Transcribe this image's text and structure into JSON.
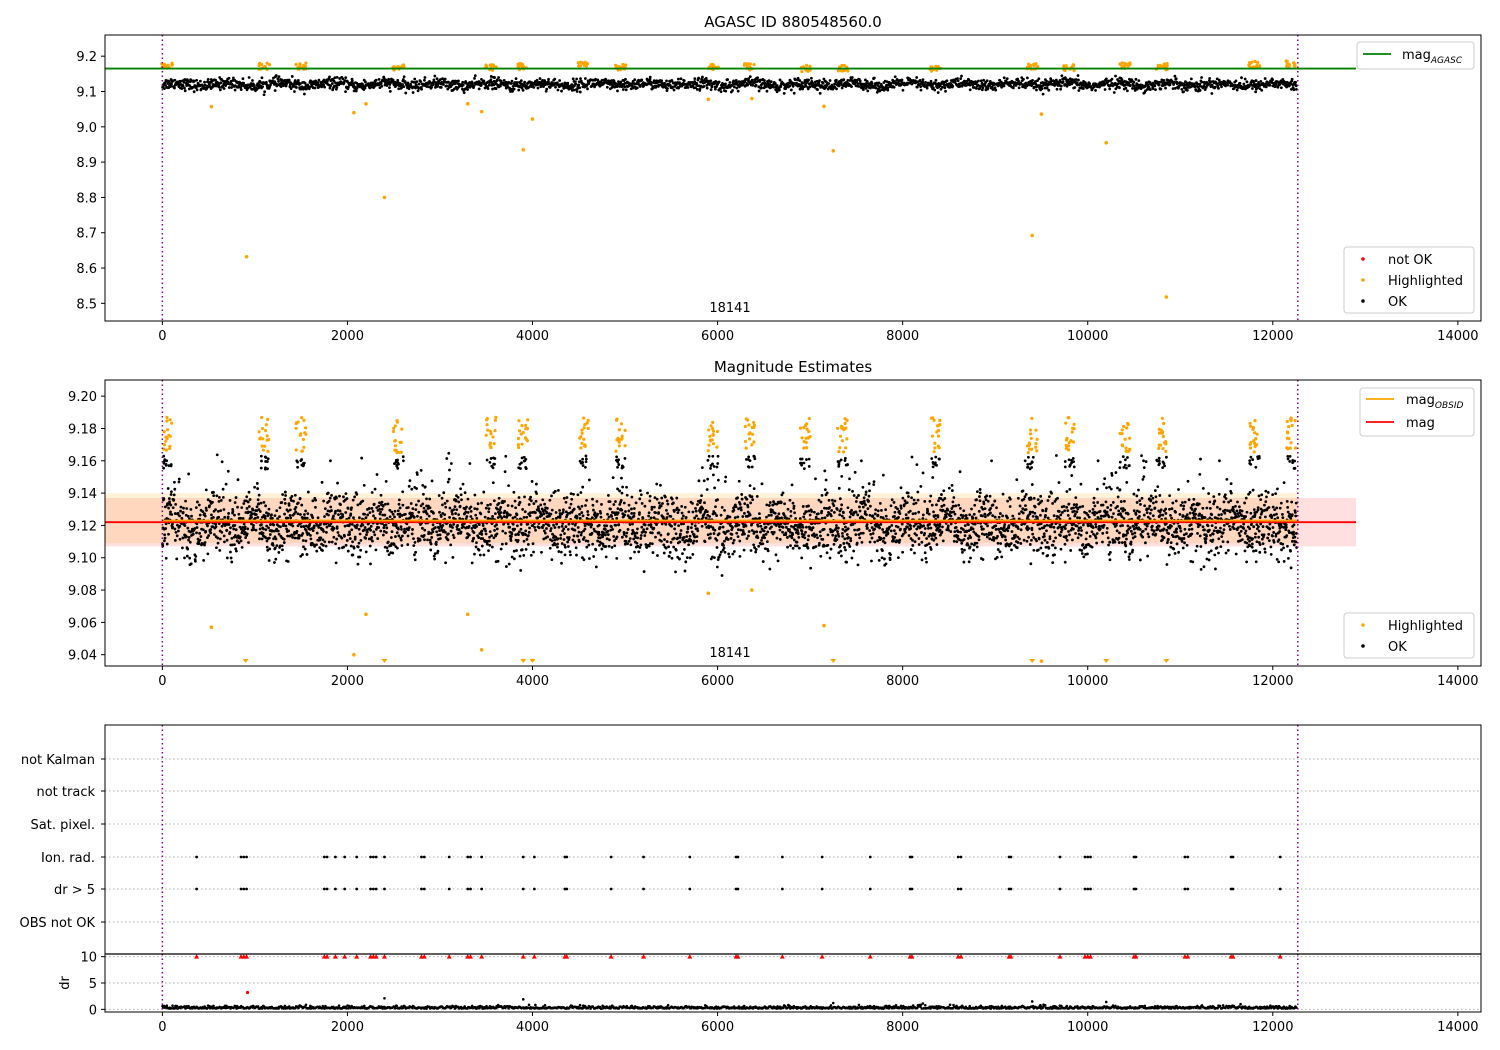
{
  "chart_data": [
    {
      "type": "scatter",
      "title": "AGASC ID 880548560.0",
      "xlim": [
        -620,
        14250
      ],
      "ylim": [
        8.45,
        9.26
      ],
      "xticks": [
        "0",
        "2000",
        "4000",
        "6000",
        "8000",
        "10000",
        "12000",
        "14000"
      ],
      "yticks": [
        "8.5",
        "8.6",
        "8.7",
        "8.8",
        "8.9",
        "9.0",
        "9.1",
        "9.2"
      ],
      "annotation": "18141",
      "vlines_x": [
        0,
        12270
      ],
      "hline": {
        "name": "mag",
        "subscript": "AGASC",
        "value": 9.165,
        "color": "#008000"
      },
      "legend_top": [
        {
          "name": "mag",
          "subscript": "AGASC",
          "color": "#008000",
          "kind": "line"
        }
      ],
      "legend_bottom": [
        {
          "name": "not OK",
          "color": "#ff0000",
          "kind": "dot"
        },
        {
          "name": "Highlighted",
          "color": "#ffa500",
          "kind": "dot"
        },
        {
          "name": "OK",
          "color": "#000000",
          "kind": "dot"
        }
      ],
      "ok_band": {
        "center": 9.12,
        "halfwidth": 0.02
      },
      "highlight_clusters": [
        {
          "x": 50,
          "y": 9.175
        },
        {
          "x": 1100,
          "y": 9.172
        },
        {
          "x": 1500,
          "y": 9.172
        },
        {
          "x": 2550,
          "y": 9.168
        },
        {
          "x": 3550,
          "y": 9.168
        },
        {
          "x": 3900,
          "y": 9.17
        },
        {
          "x": 4550,
          "y": 9.175
        },
        {
          "x": 4950,
          "y": 9.168
        },
        {
          "x": 5950,
          "y": 9.168
        },
        {
          "x": 6350,
          "y": 9.17
        },
        {
          "x": 6950,
          "y": 9.165
        },
        {
          "x": 7350,
          "y": 9.165
        },
        {
          "x": 8350,
          "y": 9.165
        },
        {
          "x": 9400,
          "y": 9.17
        },
        {
          "x": 9800,
          "y": 9.168
        },
        {
          "x": 10400,
          "y": 9.172
        },
        {
          "x": 10800,
          "y": 9.17
        },
        {
          "x": 11800,
          "y": 9.178
        },
        {
          "x": 12200,
          "y": 9.178
        }
      ],
      "highlighted_outliers": [
        {
          "x": 530,
          "y": 9.057
        },
        {
          "x": 910,
          "y": 8.632
        },
        {
          "x": 2070,
          "y": 9.04
        },
        {
          "x": 2200,
          "y": 9.065
        },
        {
          "x": 2400,
          "y": 8.8
        },
        {
          "x": 3300,
          "y": 9.065
        },
        {
          "x": 3450,
          "y": 9.043
        },
        {
          "x": 3900,
          "y": 8.935
        },
        {
          "x": 4000,
          "y": 9.022
        },
        {
          "x": 5900,
          "y": 9.078
        },
        {
          "x": 6370,
          "y": 9.08
        },
        {
          "x": 7150,
          "y": 9.058
        },
        {
          "x": 7250,
          "y": 8.932
        },
        {
          "x": 9400,
          "y": 8.692
        },
        {
          "x": 9500,
          "y": 9.036
        },
        {
          "x": 10200,
          "y": 8.955
        },
        {
          "x": 10850,
          "y": 8.518
        }
      ]
    },
    {
      "type": "scatter",
      "title": "Magnitude Estimates",
      "xlim": [
        -620,
        14250
      ],
      "ylim": [
        9.033,
        9.21
      ],
      "xticks": [
        "0",
        "2000",
        "4000",
        "6000",
        "8000",
        "10000",
        "12000",
        "14000"
      ],
      "yticks": [
        "9.04",
        "9.06",
        "9.08",
        "9.10",
        "9.12",
        "9.14",
        "9.16",
        "9.18",
        "9.20"
      ],
      "annotation": "18141",
      "vlines_x": [
        0,
        12270
      ],
      "mag": {
        "value": 9.122,
        "band": [
          9.107,
          9.137
        ],
        "color": "#ff0000"
      },
      "mag_obsid": {
        "value": 9.123,
        "band": [
          9.109,
          9.14
        ],
        "color": "#ffa500"
      },
      "legend_top": [
        {
          "name": "mag",
          "subscript": "OBSID",
          "color": "#ffa500",
          "kind": "line"
        },
        {
          "name": "mag",
          "subscript": "",
          "color": "#ff0000",
          "kind": "line"
        }
      ],
      "legend_bottom": [
        {
          "name": "Highlighted",
          "color": "#ffa500",
          "kind": "dot"
        },
        {
          "name": "OK",
          "color": "#000000",
          "kind": "dot"
        }
      ],
      "clipped_markers_x": [
        900,
        2400,
        3900,
        4000,
        7250,
        9400,
        10200,
        10850
      ]
    },
    {
      "type": "scatter",
      "title": "",
      "xlim": [
        -620,
        14250
      ],
      "categories": [
        "OBS not OK",
        "dr > 5",
        "Ion. rad.",
        "Sat. pixel.",
        "not track",
        "not Kalman"
      ],
      "flag_x": [
        370,
        850,
        880,
        910,
        1750,
        1780,
        1870,
        1970,
        2100,
        2250,
        2280,
        2310,
        2400,
        2800,
        2830,
        3100,
        3300,
        3330,
        3450,
        3900,
        4020,
        4350,
        4370,
        4850,
        5200,
        5700,
        6200,
        6220,
        6700,
        7130,
        7650,
        8080,
        8100,
        8600,
        8630,
        9150,
        9170,
        9700,
        9970,
        10000,
        10030,
        10500,
        10520,
        11050,
        11080,
        11550,
        11570,
        12080
      ],
      "vlines_x": [
        0,
        12270
      ]
    },
    {
      "type": "scatter",
      "title": "",
      "ylabel": "dr",
      "xlim": [
        -620,
        14250
      ],
      "ylim": [
        -0.5,
        10.5
      ],
      "xticks": [
        "0",
        "2000",
        "4000",
        "6000",
        "8000",
        "10000",
        "12000",
        "14000"
      ],
      "yticks": [
        "0",
        "5",
        "10"
      ],
      "vlines_x": [
        0,
        12270
      ],
      "dr_outliers": [
        {
          "x": 920,
          "y": 3.2
        },
        {
          "x": 2400,
          "y": 2.1
        },
        {
          "x": 3900,
          "y": 1.9
        },
        {
          "x": 7250,
          "y": 1.2
        },
        {
          "x": 9400,
          "y": 1.5
        },
        {
          "x": 10200,
          "y": 1.4
        }
      ]
    }
  ]
}
